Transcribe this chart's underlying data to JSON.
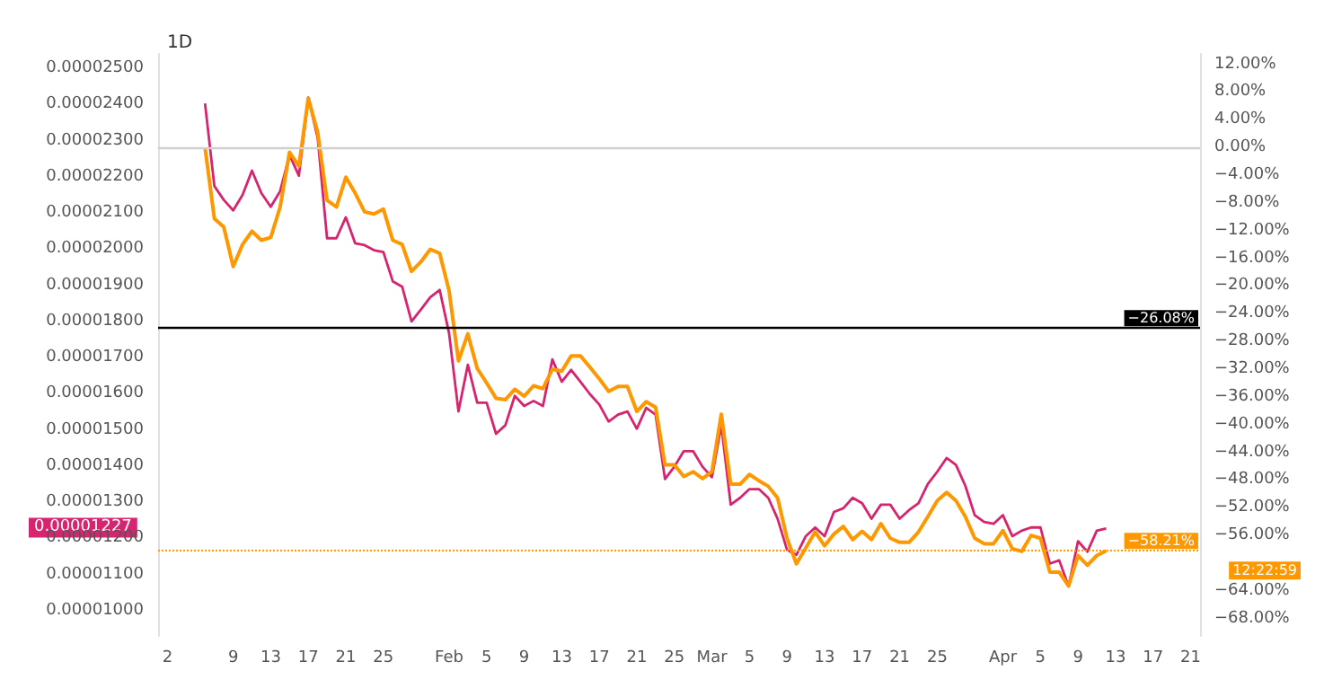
{
  "chart_data": {
    "type": "line",
    "title": "1D",
    "x": [
      "--01-06",
      "--01-07",
      "--01-08",
      "--01-09",
      "--01-10",
      "--01-11",
      "--01-12",
      "--01-13",
      "--01-14",
      "--01-15",
      "--01-16",
      "--01-17",
      "--01-18",
      "--01-19",
      "--01-20",
      "--01-21",
      "--01-22",
      "--01-23",
      "--01-24",
      "--01-25",
      "--01-26",
      "--01-27",
      "--01-28",
      "--01-29",
      "--01-30",
      "--01-31",
      "--02-01",
      "--02-02",
      "--02-03",
      "--02-04",
      "--02-05",
      "--02-06",
      "--02-07",
      "--02-08",
      "--02-09",
      "--02-10",
      "--02-11",
      "--02-12",
      "--02-13",
      "--02-14",
      "--02-15",
      "--02-16",
      "--02-17",
      "--02-18",
      "--02-19",
      "--02-20",
      "--02-21",
      "--02-22",
      "--02-23",
      "--02-24",
      "--02-25",
      "--02-26",
      "--02-27",
      "--02-28",
      "--03-01",
      "--03-02",
      "--03-03",
      "--03-04",
      "--03-05",
      "--03-06",
      "--03-07",
      "--03-08",
      "--03-09",
      "--03-10",
      "--03-11",
      "--03-12",
      "--03-13",
      "--03-14",
      "--03-15",
      "--03-16",
      "--03-17",
      "--03-18",
      "--03-19",
      "--03-20",
      "--03-21",
      "--03-22",
      "--03-23",
      "--03-24",
      "--03-25",
      "--03-26",
      "--03-27",
      "--03-28",
      "--03-29",
      "--03-30",
      "--03-31",
      "--04-01",
      "--04-02",
      "--04-03",
      "--04-04",
      "--04-05",
      "--04-06",
      "--04-07",
      "--04-08",
      "--04-09",
      "--04-10",
      "--04-11",
      "--04-12"
    ],
    "series": [
      {
        "color": "#d6246e",
        "values": [
          2.403e-05,
          2.174e-05,
          2.136e-05,
          2.107e-05,
          2.15e-05,
          2.217e-05,
          2.155e-05,
          2.117e-05,
          2.16e-05,
          2.26e-05,
          2.203e-05,
          2.419e-05,
          2.308e-05,
          2.03e-05,
          2.03e-05,
          2.088e-05,
          2.016e-05,
          2.011e-05,
          1.997e-05,
          1.992e-05,
          1.911e-05,
          1.896e-05,
          1.8e-05,
          1.833e-05,
          1.867e-05,
          1.887e-05,
          1.767e-05,
          1.551e-05,
          1.68e-05,
          1.575e-05,
          1.575e-05,
          1.489e-05,
          1.513e-05,
          1.594e-05,
          1.566e-05,
          1.58e-05,
          1.566e-05,
          1.695e-05,
          1.633e-05,
          1.666e-05,
          1.633e-05,
          1.599e-05,
          1.57e-05,
          1.523e-05,
          1.542e-05,
          1.551e-05,
          1.503e-05,
          1.561e-05,
          1.542e-05,
          1.364e-05,
          1.398e-05,
          1.441e-05,
          1.441e-05,
          1.398e-05,
          1.369e-05,
          1.513e-05,
          1.293e-05,
          1.312e-05,
          1.336e-05,
          1.336e-05,
          1.312e-05,
          1.254e-05,
          1.168e-05,
          1.154e-05,
          1.206e-05,
          1.23e-05,
          1.206e-05,
          1.273e-05,
          1.283e-05,
          1.312e-05,
          1.297e-05,
          1.254e-05,
          1.293e-05,
          1.293e-05,
          1.254e-05,
          1.278e-05,
          1.297e-05,
          1.35e-05,
          1.384e-05,
          1.422e-05,
          1.403e-05,
          1.345e-05,
          1.264e-05,
          1.245e-05,
          1.24e-05,
          1.264e-05,
          1.206e-05,
          1.221e-05,
          1.23e-05,
          1.23e-05,
          1.13e-05,
          1.139e-05,
          1.067e-05,
          1.192e-05,
          1.163e-05,
          1.221e-05,
          1.227e-05
        ]
      },
      {
        "color": "#ff9800",
        "axis": "y2",
        "values": [
          0,
          -10.3,
          -11.5,
          -17.2,
          -14.0,
          -12.1,
          -13.4,
          -13.0,
          -8.6,
          -0.7,
          -2.7,
          7.1,
          2.2,
          -7.6,
          -8.6,
          -4.3,
          -6.6,
          -9.3,
          -9.6,
          -8.9,
          -13.4,
          -14.0,
          -17.9,
          -16.5,
          -14.7,
          -15.3,
          -20.7,
          -30.8,
          -26.9,
          -31.9,
          -34.0,
          -36.2,
          -36.4,
          -34.9,
          -35.9,
          -34.4,
          -34.8,
          -32.0,
          -32.3,
          -30.1,
          -30.1,
          -31.7,
          -33.4,
          -35.2,
          -34.5,
          -34.5,
          -38.1,
          -36.7,
          -37.5,
          -45.8,
          -45.8,
          -47.5,
          -46.8,
          -47.8,
          -46.8,
          -38.5,
          -48.6,
          -48.6,
          -47.2,
          -48.1,
          -48.9,
          -50.6,
          -56.4,
          -60.1,
          -57.8,
          -55.5,
          -57.5,
          -55.8,
          -54.7,
          -56.6,
          -55.4,
          -56.6,
          -54.3,
          -56.4,
          -57.0,
          -57.0,
          -55.5,
          -53.3,
          -51.0,
          -49.8,
          -51.0,
          -53.3,
          -56.4,
          -57.2,
          -57.2,
          -55.3,
          -57.9,
          -58.3,
          -56.0,
          -56.4,
          -61.3,
          -61.3,
          -63.3,
          -58.9,
          -60.3,
          -58.9,
          -58.21
        ]
      }
    ],
    "xlim": [
      "--01-01",
      "--04-22"
    ],
    "xticks": [
      {
        "value": "--01-02",
        "label": "2"
      },
      {
        "value": "--01-09",
        "label": "9"
      },
      {
        "value": "--01-13",
        "label": "13"
      },
      {
        "value": "--01-17",
        "label": "17"
      },
      {
        "value": "--01-21",
        "label": "21"
      },
      {
        "value": "--01-25",
        "label": "25"
      },
      {
        "value": "--02-01",
        "label": "Feb"
      },
      {
        "value": "--02-05",
        "label": "5"
      },
      {
        "value": "--02-09",
        "label": "9"
      },
      {
        "value": "--02-13",
        "label": "13"
      },
      {
        "value": "--02-17",
        "label": "17"
      },
      {
        "value": "--02-21",
        "label": "21"
      },
      {
        "value": "--02-25",
        "label": "25"
      },
      {
        "value": "--03-01",
        "label": "Mar"
      },
      {
        "value": "--03-05",
        "label": "5"
      },
      {
        "value": "--03-09",
        "label": "9"
      },
      {
        "value": "--03-13",
        "label": "13"
      },
      {
        "value": "--03-17",
        "label": "17"
      },
      {
        "value": "--03-21",
        "label": "21"
      },
      {
        "value": "--03-25",
        "label": "25"
      },
      {
        "value": "--04-01",
        "label": "Apr"
      },
      {
        "value": "--04-05",
        "label": "5"
      },
      {
        "value": "--04-09",
        "label": "9"
      },
      {
        "value": "--04-13",
        "label": "13"
      },
      {
        "value": "--04-17",
        "label": "17"
      },
      {
        "value": "--04-21",
        "label": "21"
      }
    ],
    "ylim": [
      9.3e-06,
      2.54e-05
    ],
    "yticks": [
      {
        "value": 1e-05,
        "label": "0.00001000"
      },
      {
        "value": 1.1e-05,
        "label": "0.00001100"
      },
      {
        "value": 1.2e-05,
        "label": "0.00001200"
      },
      {
        "value": 1.3e-05,
        "label": "0.00001300"
      },
      {
        "value": 1.4e-05,
        "label": "0.00001400"
      },
      {
        "value": 1.5e-05,
        "label": "0.00001500"
      },
      {
        "value": 1.6e-05,
        "label": "0.00001600"
      },
      {
        "value": 1.7e-05,
        "label": "0.00001700"
      },
      {
        "value": 1.8e-05,
        "label": "0.00001800"
      },
      {
        "value": 1.9e-05,
        "label": "0.00001900"
      },
      {
        "value": 2e-05,
        "label": "0.00002000"
      },
      {
        "value": 2.1e-05,
        "label": "0.00002100"
      },
      {
        "value": 2.2e-05,
        "label": "0.00002200"
      },
      {
        "value": 2.3e-05,
        "label": "0.00002300"
      },
      {
        "value": 2.4e-05,
        "label": "0.00002400"
      },
      {
        "value": 2.5e-05,
        "label": "0.00002500"
      }
    ],
    "y2lim": [
      -70.5,
      13.5
    ],
    "y2ticks": [
      {
        "value": 12,
        "label": "12.00%"
      },
      {
        "value": 8,
        "label": "8.00%"
      },
      {
        "value": 4,
        "label": "4.00%"
      },
      {
        "value": 0,
        "label": "0.00%"
      },
      {
        "value": -4,
        "label": "−4.00%"
      },
      {
        "value": -8,
        "label": "−8.00%"
      },
      {
        "value": -12,
        "label": "−12.00%"
      },
      {
        "value": -16,
        "label": "−16.00%"
      },
      {
        "value": -20,
        "label": "−20.00%"
      },
      {
        "value": -24,
        "label": "−24.00%"
      },
      {
        "value": -28,
        "label": "−28.00%"
      },
      {
        "value": -32,
        "label": "−32.00%"
      },
      {
        "value": -36,
        "label": "−36.00%"
      },
      {
        "value": -40,
        "label": "−40.00%"
      },
      {
        "value": -44,
        "label": "−44.00%"
      },
      {
        "value": -48,
        "label": "−48.00%"
      },
      {
        "value": -52,
        "label": "−52.00%"
      },
      {
        "value": -56,
        "label": "−56.00%"
      },
      {
        "value": -64,
        "label": "−64.00%"
      },
      {
        "value": -68,
        "label": "−68.00%"
      }
    ],
    "ref_lines": [
      {
        "axis": "y2",
        "value": 0,
        "color": "#d0d0d0"
      },
      {
        "axis": "y2",
        "value": -26.08,
        "label": "−26.08%",
        "color": "#000000"
      },
      {
        "axis": "y2",
        "value": -58.21,
        "label": "−58.21%",
        "color": "#ff9800",
        "line_style": "dotted"
      }
    ],
    "annotations": [
      "0.00001227",
      "12:22:59"
    ],
    "grid": false,
    "marker": "none",
    "line_style": "solid"
  }
}
